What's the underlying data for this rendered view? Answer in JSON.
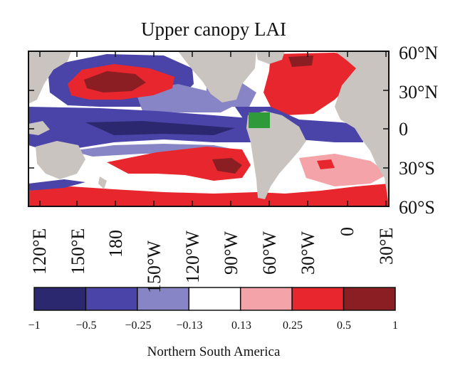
{
  "title": "Upper canopy LAI",
  "latitude_labels": [
    "60°N",
    "30°N",
    "0",
    "30°S",
    "60°S"
  ],
  "longitude_labels": [
    "120°E",
    "150°E",
    "180",
    "150°W",
    "120°W",
    "90°W",
    "60°W",
    "30°W",
    "0",
    "30°E"
  ],
  "colorbar": {
    "tick_labels": [
      "−1",
      "−0.5",
      "−0.25",
      "−0.13",
      "0.13",
      "0.25",
      "0.5",
      "1"
    ],
    "colors": [
      "#2b2870",
      "#4a44a8",
      "#8785c5",
      "#ffffff",
      "#f4a3a8",
      "#e8262d",
      "#8b1e22"
    ]
  },
  "caption": "Northern South America",
  "map_colors": {
    "land": "#c9c4bf",
    "highlight_box": "#2e9a3a",
    "ocean_neutral": "#ffffff"
  }
}
